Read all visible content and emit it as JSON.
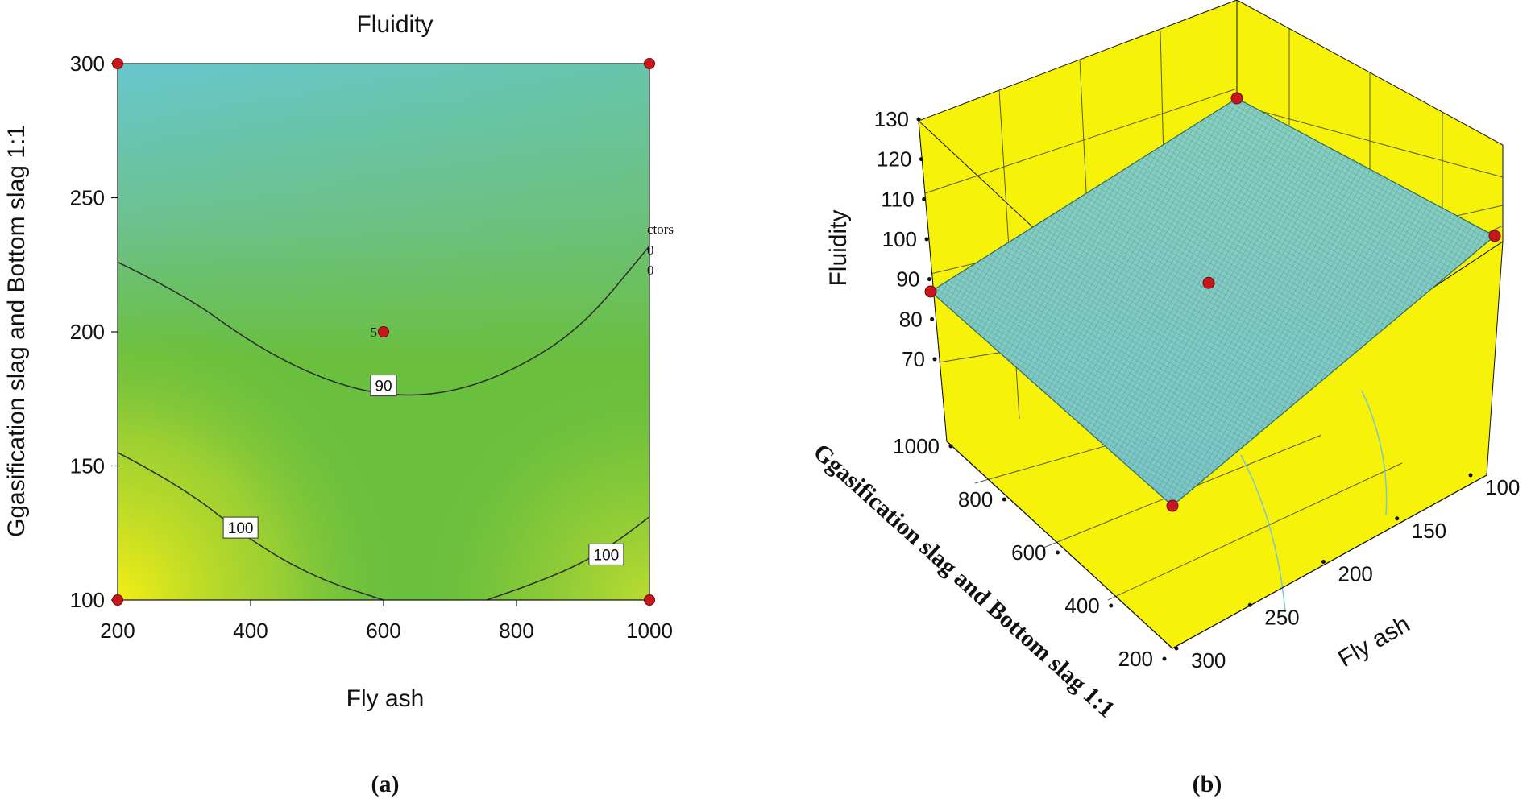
{
  "chart_data": [
    {
      "panel": "(a)",
      "type": "contour",
      "title": "Fluidity",
      "xlabel": "Fly ash",
      "ylabel": "Ggasification slag and Bottom slag 1:1",
      "xlim": [
        200,
        1000
      ],
      "ylim": [
        100,
        300
      ],
      "xticks": [
        200,
        400,
        600,
        800,
        1000
      ],
      "yticks": [
        100,
        150,
        200,
        250,
        300
      ],
      "colors": {
        "high": "#f4ee14",
        "mid": "#6abf3e",
        "low": "#66c8d2"
      },
      "contours": [
        {
          "level": 90,
          "label": "90",
          "points": [
            [
              200,
              226
            ],
            [
              300,
              214
            ],
            [
              400,
              196
            ],
            [
              500,
              183
            ],
            [
              600,
              176
            ],
            [
              700,
              177
            ],
            [
              800,
              186
            ],
            [
              900,
              202
            ],
            [
              1000,
              232
            ]
          ]
        },
        {
          "level": 100,
          "label": "100",
          "points": [
            [
              200,
              155
            ],
            [
              300,
              142
            ],
            [
              400,
              122
            ],
            [
              500,
              108
            ],
            [
              600,
              100
            ]
          ]
        },
        {
          "level": 100,
          "label": "100",
          "points": [
            [
              755,
              100
            ],
            [
              850,
              108
            ],
            [
              930,
              118
            ],
            [
              1000,
              131
            ]
          ]
        }
      ],
      "contour_labels": [
        {
          "text": "90",
          "x": 600,
          "y": 180
        },
        {
          "text": "100",
          "x": 385,
          "y": 127
        },
        {
          "text": "100",
          "x": 935,
          "y": 117
        }
      ],
      "design_points": [
        [
          200,
          100
        ],
        [
          200,
          300
        ],
        [
          1000,
          100
        ],
        [
          1000,
          300
        ],
        [
          600,
          200
        ]
      ],
      "center_point_label": {
        "text": "5",
        "x": 600,
        "y": 200
      },
      "occluded_legend": [
        "ctors",
        "0",
        "0"
      ]
    },
    {
      "panel": "(b)",
      "type": "surface3d",
      "zlabel": "Fluidity",
      "xlabel": "Fly ash",
      "ylabel": "Ggasification slag and Bottom slag 1:1",
      "zticks": [
        70,
        80,
        90,
        100,
        110,
        120,
        130
      ],
      "xticks": [
        100,
        150,
        200,
        250,
        300
      ],
      "yticks": [
        200,
        400,
        600,
        800,
        1000
      ],
      "colors": {
        "wall": "#f7f20a",
        "surface": "#7fcab8",
        "mesh": "#3f6f68"
      },
      "design_points": [
        {
          "fly_ash": 100,
          "slag": 200,
          "fluidity": 126
        },
        {
          "fly_ash": 100,
          "slag": 1000,
          "fluidity": 103
        },
        {
          "fly_ash": 300,
          "slag": 1000,
          "fluidity": 84
        },
        {
          "fly_ash": 300,
          "slag": 200,
          "fluidity": 74
        },
        {
          "fly_ash": 200,
          "slag": 600,
          "fluidity": 88
        }
      ]
    }
  ],
  "panel_labels": {
    "a": "(a)",
    "b": "(b)"
  }
}
